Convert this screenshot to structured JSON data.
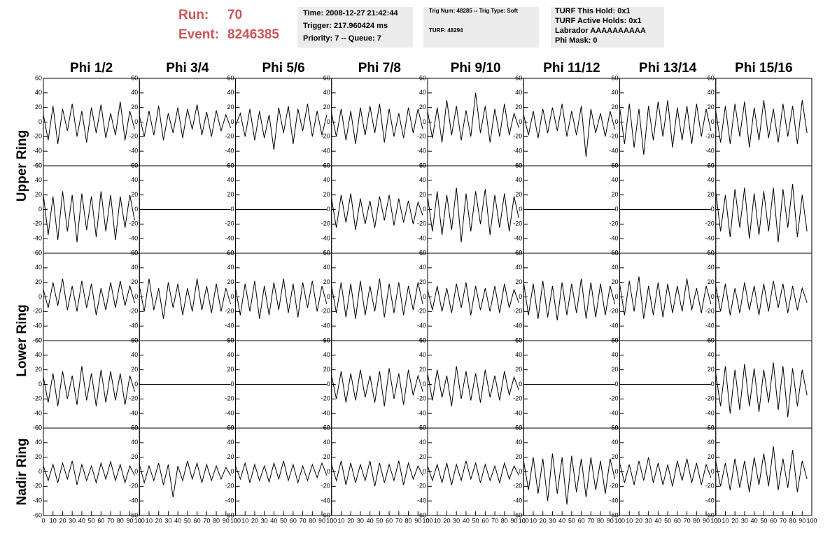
{
  "header": {
    "run_label": "Run:",
    "run": "70",
    "event_label": "Event:",
    "event": "8246385",
    "boxes": [
      [
        "Time: 2008-12-27 21:42:44",
        "Trigger: 217.960424 ms",
        "Priority: 7 -- Queue: 7"
      ],
      [
        "Trig Num: 48285 -- Trig Type: Soft",
        "TURF: 48294"
      ],
      [
        "TURF This Hold: 0x1",
        "TURF Active Holds: 0x1",
        "Labrador AAAAAAAAAA",
        "Phi Mask: 0"
      ]
    ]
  },
  "chart_data": {
    "type": "line",
    "columns": [
      "Phi 1/2",
      "Phi 3/4",
      "Phi 5/6",
      "Phi 7/8",
      "Phi 9/10",
      "Phi 11/12",
      "Phi 13/14",
      "Phi 15/16"
    ],
    "rows": [
      "Upper Ring",
      "Lower Ring",
      "Nadir Ring"
    ],
    "color": "#000000",
    "x": [
      0,
      5,
      10,
      15,
      20,
      25,
      30,
      35,
      40,
      45,
      50,
      55,
      60,
      65,
      70,
      75,
      80,
      85,
      90,
      95
    ],
    "xlim": [
      0,
      100
    ],
    "xticks": [
      0,
      10,
      20,
      30,
      40,
      50,
      60,
      70,
      80,
      90,
      100
    ],
    "ylim": [
      -60,
      60
    ],
    "yticks": [
      -60,
      -40,
      -20,
      0,
      20,
      40,
      60
    ],
    "panels": [
      [
        [
          10,
          -25,
          22,
          -30,
          18,
          -12,
          25,
          -20,
          15,
          -28,
          20,
          -15,
          24,
          -22,
          12,
          -18,
          28,
          -25,
          15,
          -10
        ],
        [
          8,
          -20,
          15,
          -18,
          22,
          -25,
          12,
          -15,
          20,
          -22,
          18,
          -10,
          24,
          -18,
          14,
          -20,
          16,
          -12,
          10,
          -8
        ],
        [
          -5,
          12,
          -20,
          18,
          -25,
          15,
          -22,
          10,
          -38,
          20,
          -15,
          22,
          -30,
          18,
          -12,
          25,
          -20,
          15,
          -18,
          10
        ],
        [
          12,
          -20,
          18,
          -25,
          15,
          -30,
          20,
          -18,
          22,
          -15,
          25,
          -28,
          18,
          -20,
          12,
          -22,
          20,
          -15,
          18,
          -10
        ],
        [
          15,
          -22,
          20,
          -28,
          30,
          -18,
          22,
          -25,
          16,
          -20,
          40,
          -15,
          22,
          -28,
          18,
          -20,
          25,
          -18,
          12,
          -8
        ],
        [
          10,
          -18,
          15,
          -22,
          18,
          -15,
          20,
          -12,
          25,
          -20,
          15,
          -18,
          22,
          -48,
          18,
          -15,
          12,
          -20,
          15,
          -10
        ],
        [
          20,
          -30,
          25,
          -35,
          18,
          -45,
          22,
          -25,
          28,
          -20,
          30,
          -35,
          20,
          -25,
          22,
          -30,
          25,
          -20,
          18,
          -12
        ],
        [
          15,
          -28,
          22,
          -30,
          25,
          -20,
          28,
          -35,
          20,
          -25,
          30,
          -22,
          18,
          -28,
          25,
          -20,
          22,
          -30,
          30,
          -15
        ]
      ],
      [
        [
          20,
          -35,
          18,
          -42,
          25,
          -30,
          20,
          -45,
          22,
          -28,
          18,
          -38,
          25,
          -30,
          20,
          -42,
          18,
          -25,
          20,
          -15
        ],
        [
          0,
          0,
          0,
          0,
          0,
          0,
          0,
          0,
          0,
          0,
          0,
          0,
          0,
          0,
          0,
          0,
          0,
          0,
          0,
          0
        ],
        [
          0,
          0,
          0,
          0,
          0,
          0,
          0,
          0,
          0,
          0,
          0,
          0,
          0,
          0,
          0,
          0,
          0,
          0,
          0,
          0
        ],
        [
          15,
          -25,
          20,
          -18,
          22,
          -28,
          15,
          -20,
          12,
          -25,
          18,
          -15,
          20,
          -22,
          15,
          -18,
          12,
          -20,
          10,
          -8
        ],
        [
          18,
          -30,
          25,
          -35,
          20,
          -28,
          30,
          -45,
          22,
          -30,
          25,
          -20,
          28,
          -35,
          20,
          -25,
          22,
          -30,
          18,
          -12
        ],
        [
          0,
          0,
          0,
          0,
          0,
          0,
          0,
          0,
          0,
          0,
          0,
          0,
          0,
          0,
          0,
          0,
          0,
          0,
          0,
          0
        ],
        [
          0,
          0,
          0,
          0,
          0,
          0,
          0,
          0,
          0,
          0,
          0,
          0,
          0,
          0,
          0,
          0,
          0,
          0,
          0,
          0
        ],
        [
          25,
          -30,
          20,
          -38,
          28,
          -25,
          30,
          -40,
          22,
          -35,
          25,
          -30,
          30,
          -45,
          28,
          -25,
          35,
          -38,
          20,
          -30
        ]
      ],
      [
        [
          10,
          -15,
          20,
          -12,
          25,
          -18,
          15,
          -20,
          22,
          -15,
          18,
          -25,
          12,
          -18,
          20,
          -15,
          22,
          -12,
          15,
          -8
        ],
        [
          15,
          -20,
          25,
          -18,
          12,
          -30,
          20,
          -15,
          18,
          -25,
          12,
          -20,
          25,
          -18,
          15,
          -22,
          18,
          -20,
          12,
          -10
        ],
        [
          12,
          -25,
          18,
          -20,
          22,
          -30,
          15,
          -25,
          20,
          -18,
          25,
          -22,
          18,
          -28,
          20,
          -15,
          22,
          -20,
          15,
          -10
        ],
        [
          15,
          -22,
          20,
          -28,
          18,
          -30,
          22,
          -25,
          15,
          -20,
          25,
          -28,
          18,
          -22,
          20,
          -25,
          15,
          -18,
          20,
          -10
        ],
        [
          10,
          -18,
          15,
          -20,
          12,
          -22,
          18,
          -15,
          20,
          -25,
          15,
          -18,
          12,
          -20,
          15,
          -22,
          18,
          -15,
          10,
          -8
        ],
        [
          20,
          -25,
          18,
          -30,
          22,
          -28,
          15,
          -32,
          20,
          -25,
          18,
          -22,
          25,
          -30,
          20,
          -28,
          18,
          -25,
          15,
          -10
        ],
        [
          18,
          -25,
          22,
          -20,
          28,
          -30,
          15,
          -25,
          20,
          -28,
          18,
          -22,
          15,
          -20,
          25,
          -18,
          12,
          -22,
          15,
          -10
        ],
        [
          15,
          -20,
          18,
          -25,
          12,
          -22,
          20,
          -18,
          15,
          -25,
          18,
          -20,
          22,
          -15,
          18,
          -22,
          15,
          -18,
          12,
          -8
        ]
      ],
      [
        [
          10,
          -25,
          15,
          -30,
          18,
          -20,
          12,
          -28,
          25,
          -22,
          15,
          -30,
          20,
          -25,
          18,
          -22,
          15,
          -28,
          12,
          -10
        ],
        [
          0,
          0,
          0,
          0,
          0,
          0,
          0,
          0,
          0,
          0,
          0,
          0,
          0,
          0,
          0,
          0,
          0,
          0,
          0,
          0
        ],
        [
          0,
          0,
          0,
          0,
          0,
          0,
          0,
          0,
          0,
          0,
          0,
          0,
          0,
          0,
          0,
          0,
          0,
          0,
          0,
          0
        ],
        [
          12,
          -20,
          18,
          -25,
          15,
          -22,
          20,
          -18,
          12,
          -25,
          18,
          -30,
          22,
          -20,
          15,
          -28,
          20,
          -15,
          12,
          -10
        ],
        [
          15,
          -22,
          20,
          -18,
          12,
          -30,
          25,
          -20,
          18,
          -22,
          15,
          -25,
          20,
          -18,
          12,
          -22,
          18,
          -15,
          10,
          -8
        ],
        [
          0,
          0,
          0,
          0,
          0,
          0,
          0,
          0,
          0,
          0,
          0,
          0,
          0,
          0,
          0,
          0,
          0,
          0,
          0,
          0
        ],
        [
          0,
          0,
          0,
          0,
          0,
          0,
          0,
          0,
          0,
          0,
          0,
          0,
          0,
          0,
          0,
          0,
          0,
          0,
          0,
          0
        ],
        [
          15,
          -30,
          25,
          -40,
          20,
          -35,
          28,
          -30,
          22,
          -38,
          20,
          -25,
          30,
          -35,
          25,
          -45,
          22,
          -30,
          20,
          -15
        ]
      ],
      [
        [
          8,
          -12,
          10,
          -15,
          12,
          -10,
          15,
          -18,
          10,
          -12,
          8,
          -15,
          12,
          -10,
          14,
          -12,
          10,
          -15,
          8,
          -5
        ],
        [
          10,
          -15,
          8,
          -12,
          12,
          -18,
          10,
          -35,
          8,
          -12,
          15,
          -10,
          12,
          -15,
          10,
          -12,
          8,
          -10,
          6,
          -5
        ],
        [
          8,
          -10,
          12,
          -15,
          10,
          -12,
          8,
          -14,
          12,
          -10,
          15,
          -12,
          10,
          -15,
          8,
          -12,
          10,
          -8,
          12,
          -5
        ],
        [
          10,
          -12,
          15,
          -18,
          12,
          -15,
          10,
          -12,
          15,
          -20,
          12,
          -15,
          10,
          -12,
          15,
          -18,
          12,
          -10,
          8,
          -5
        ],
        [
          8,
          -12,
          10,
          -15,
          12,
          -18,
          10,
          -12,
          15,
          -10,
          12,
          -15,
          10,
          -12,
          8,
          -15,
          12,
          -10,
          8,
          -5
        ],
        [
          15,
          -25,
          20,
          -30,
          18,
          -40,
          25,
          -30,
          20,
          -45,
          22,
          -28,
          18,
          -35,
          20,
          -25,
          15,
          -30,
          18,
          -10
        ],
        [
          12,
          -15,
          10,
          -18,
          15,
          -12,
          20,
          -15,
          12,
          -18,
          10,
          -20,
          15,
          -12,
          18,
          -15,
          12,
          -18,
          10,
          -8
        ],
        [
          15,
          -20,
          12,
          -25,
          18,
          -22,
          15,
          -28,
          20,
          -18,
          25,
          -20,
          35,
          -25,
          18,
          -22,
          30,
          -28,
          15,
          -10
        ]
      ]
    ]
  }
}
